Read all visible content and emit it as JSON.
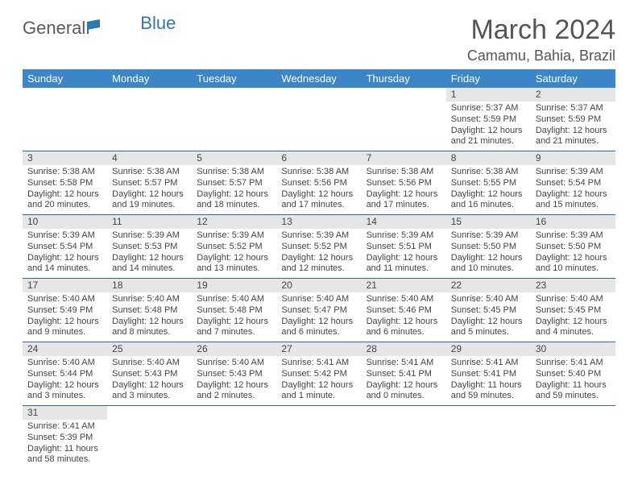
{
  "brand": {
    "part1": "General",
    "part2": "Blue"
  },
  "title": "March 2024",
  "location": "Camamu, Bahia, Brazil",
  "colors": {
    "header_bg": "#3a86c8",
    "header_text": "#ffffff",
    "cell_divider": "#2a6aa8",
    "daynum_bg": "#e6e6e6",
    "text": "#444444"
  },
  "weekdays": [
    "Sunday",
    "Monday",
    "Tuesday",
    "Wednesday",
    "Thursday",
    "Friday",
    "Saturday"
  ],
  "weeks": [
    [
      null,
      null,
      null,
      null,
      null,
      {
        "n": "1",
        "sr": "Sunrise: 5:37 AM",
        "ss": "Sunset: 5:59 PM",
        "d1": "Daylight: 12 hours",
        "d2": "and 21 minutes."
      },
      {
        "n": "2",
        "sr": "Sunrise: 5:37 AM",
        "ss": "Sunset: 5:59 PM",
        "d1": "Daylight: 12 hours",
        "d2": "and 21 minutes."
      }
    ],
    [
      {
        "n": "3",
        "sr": "Sunrise: 5:38 AM",
        "ss": "Sunset: 5:58 PM",
        "d1": "Daylight: 12 hours",
        "d2": "and 20 minutes."
      },
      {
        "n": "4",
        "sr": "Sunrise: 5:38 AM",
        "ss": "Sunset: 5:57 PM",
        "d1": "Daylight: 12 hours",
        "d2": "and 19 minutes."
      },
      {
        "n": "5",
        "sr": "Sunrise: 5:38 AM",
        "ss": "Sunset: 5:57 PM",
        "d1": "Daylight: 12 hours",
        "d2": "and 18 minutes."
      },
      {
        "n": "6",
        "sr": "Sunrise: 5:38 AM",
        "ss": "Sunset: 5:56 PM",
        "d1": "Daylight: 12 hours",
        "d2": "and 17 minutes."
      },
      {
        "n": "7",
        "sr": "Sunrise: 5:38 AM",
        "ss": "Sunset: 5:56 PM",
        "d1": "Daylight: 12 hours",
        "d2": "and 17 minutes."
      },
      {
        "n": "8",
        "sr": "Sunrise: 5:38 AM",
        "ss": "Sunset: 5:55 PM",
        "d1": "Daylight: 12 hours",
        "d2": "and 16 minutes."
      },
      {
        "n": "9",
        "sr": "Sunrise: 5:39 AM",
        "ss": "Sunset: 5:54 PM",
        "d1": "Daylight: 12 hours",
        "d2": "and 15 minutes."
      }
    ],
    [
      {
        "n": "10",
        "sr": "Sunrise: 5:39 AM",
        "ss": "Sunset: 5:54 PM",
        "d1": "Daylight: 12 hours",
        "d2": "and 14 minutes."
      },
      {
        "n": "11",
        "sr": "Sunrise: 5:39 AM",
        "ss": "Sunset: 5:53 PM",
        "d1": "Daylight: 12 hours",
        "d2": "and 14 minutes."
      },
      {
        "n": "12",
        "sr": "Sunrise: 5:39 AM",
        "ss": "Sunset: 5:52 PM",
        "d1": "Daylight: 12 hours",
        "d2": "and 13 minutes."
      },
      {
        "n": "13",
        "sr": "Sunrise: 5:39 AM",
        "ss": "Sunset: 5:52 PM",
        "d1": "Daylight: 12 hours",
        "d2": "and 12 minutes."
      },
      {
        "n": "14",
        "sr": "Sunrise: 5:39 AM",
        "ss": "Sunset: 5:51 PM",
        "d1": "Daylight: 12 hours",
        "d2": "and 11 minutes."
      },
      {
        "n": "15",
        "sr": "Sunrise: 5:39 AM",
        "ss": "Sunset: 5:50 PM",
        "d1": "Daylight: 12 hours",
        "d2": "and 10 minutes."
      },
      {
        "n": "16",
        "sr": "Sunrise: 5:39 AM",
        "ss": "Sunset: 5:50 PM",
        "d1": "Daylight: 12 hours",
        "d2": "and 10 minutes."
      }
    ],
    [
      {
        "n": "17",
        "sr": "Sunrise: 5:40 AM",
        "ss": "Sunset: 5:49 PM",
        "d1": "Daylight: 12 hours",
        "d2": "and 9 minutes."
      },
      {
        "n": "18",
        "sr": "Sunrise: 5:40 AM",
        "ss": "Sunset: 5:48 PM",
        "d1": "Daylight: 12 hours",
        "d2": "and 8 minutes."
      },
      {
        "n": "19",
        "sr": "Sunrise: 5:40 AM",
        "ss": "Sunset: 5:48 PM",
        "d1": "Daylight: 12 hours",
        "d2": "and 7 minutes."
      },
      {
        "n": "20",
        "sr": "Sunrise: 5:40 AM",
        "ss": "Sunset: 5:47 PM",
        "d1": "Daylight: 12 hours",
        "d2": "and 6 minutes."
      },
      {
        "n": "21",
        "sr": "Sunrise: 5:40 AM",
        "ss": "Sunset: 5:46 PM",
        "d1": "Daylight: 12 hours",
        "d2": "and 6 minutes."
      },
      {
        "n": "22",
        "sr": "Sunrise: 5:40 AM",
        "ss": "Sunset: 5:45 PM",
        "d1": "Daylight: 12 hours",
        "d2": "and 5 minutes."
      },
      {
        "n": "23",
        "sr": "Sunrise: 5:40 AM",
        "ss": "Sunset: 5:45 PM",
        "d1": "Daylight: 12 hours",
        "d2": "and 4 minutes."
      }
    ],
    [
      {
        "n": "24",
        "sr": "Sunrise: 5:40 AM",
        "ss": "Sunset: 5:44 PM",
        "d1": "Daylight: 12 hours",
        "d2": "and 3 minutes."
      },
      {
        "n": "25",
        "sr": "Sunrise: 5:40 AM",
        "ss": "Sunset: 5:43 PM",
        "d1": "Daylight: 12 hours",
        "d2": "and 3 minutes."
      },
      {
        "n": "26",
        "sr": "Sunrise: 5:40 AM",
        "ss": "Sunset: 5:43 PM",
        "d1": "Daylight: 12 hours",
        "d2": "and 2 minutes."
      },
      {
        "n": "27",
        "sr": "Sunrise: 5:41 AM",
        "ss": "Sunset: 5:42 PM",
        "d1": "Daylight: 12 hours",
        "d2": "and 1 minute."
      },
      {
        "n": "28",
        "sr": "Sunrise: 5:41 AM",
        "ss": "Sunset: 5:41 PM",
        "d1": "Daylight: 12 hours",
        "d2": "and 0 minutes."
      },
      {
        "n": "29",
        "sr": "Sunrise: 5:41 AM",
        "ss": "Sunset: 5:41 PM",
        "d1": "Daylight: 11 hours",
        "d2": "and 59 minutes."
      },
      {
        "n": "30",
        "sr": "Sunrise: 5:41 AM",
        "ss": "Sunset: 5:40 PM",
        "d1": "Daylight: 11 hours",
        "d2": "and 59 minutes."
      }
    ],
    [
      {
        "n": "31",
        "sr": "Sunrise: 5:41 AM",
        "ss": "Sunset: 5:39 PM",
        "d1": "Daylight: 11 hours",
        "d2": "and 58 minutes."
      },
      null,
      null,
      null,
      null,
      null,
      null
    ]
  ]
}
